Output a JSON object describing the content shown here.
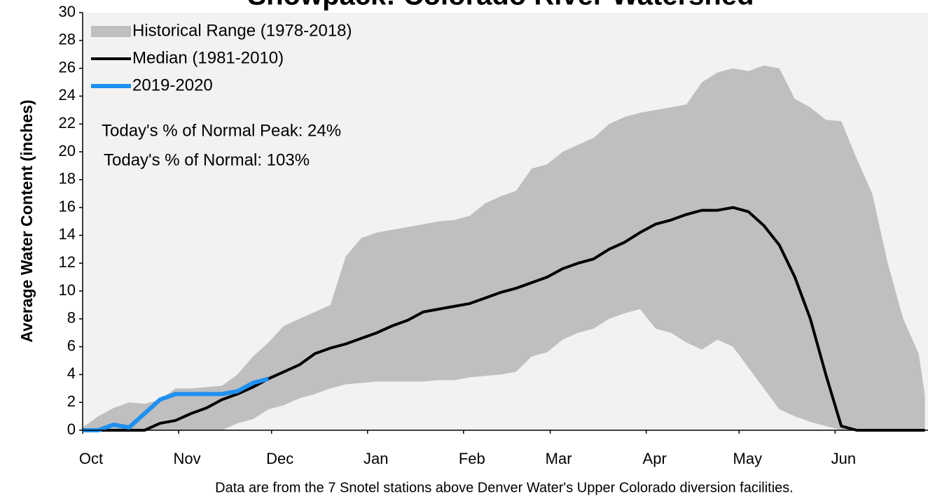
{
  "chart_data": {
    "type": "line",
    "title": "Snowpack: Colorado River Watershed",
    "y_label": "Average Water Content (inches)",
    "annotations": [
      "Today's % of Normal Peak: 24%",
      "Today's % of Normal: 103%"
    ],
    "footnote": "Data are from the 7 Snotel stations above Denver Water's Upper Colorado diversion facilities.",
    "xlim": [
      0,
      273
    ],
    "xticks": [
      {
        "value": 0,
        "label": "Oct"
      },
      {
        "value": 31,
        "label": "Nov"
      },
      {
        "value": 61,
        "label": "Dec"
      },
      {
        "value": 92,
        "label": "Jan"
      },
      {
        "value": 123,
        "label": "Feb"
      },
      {
        "value": 151,
        "label": "Mar"
      },
      {
        "value": 182,
        "label": "Apr"
      },
      {
        "value": 212,
        "label": "May"
      },
      {
        "value": 243,
        "label": "Jun"
      }
    ],
    "ylim": [
      0,
      30
    ],
    "yticks": [
      0,
      2,
      4,
      6,
      8,
      10,
      12,
      14,
      16,
      18,
      20,
      22,
      24,
      26,
      28,
      30
    ],
    "legend": "top-left",
    "x": [
      0,
      5,
      10,
      15,
      20,
      25,
      30,
      35,
      40,
      45,
      50,
      55,
      60,
      65,
      70,
      75,
      80,
      85,
      90,
      95,
      100,
      105,
      110,
      115,
      120,
      125,
      130,
      135,
      140,
      145,
      150,
      155,
      160,
      165,
      170,
      175,
      180,
      185,
      190,
      195,
      200,
      205,
      210,
      215,
      220,
      225,
      230,
      235,
      240,
      245,
      250,
      255,
      260,
      265,
      270,
      272
    ],
    "series": [
      {
        "name": "Historical Range (1978-2018)",
        "kind": "range",
        "color": "#bfbfbf",
        "high": [
          0.2,
          1.0,
          1.6,
          2.0,
          1.9,
          2.2,
          3.0,
          3.0,
          3.1,
          3.2,
          4.0,
          5.3,
          6.3,
          7.5,
          8.0,
          8.5,
          9.0,
          12.5,
          13.8,
          14.2,
          14.4,
          14.6,
          14.8,
          15.0,
          15.1,
          15.4,
          16.3,
          16.8,
          17.2,
          18.8,
          19.1,
          20.0,
          20.5,
          21.0,
          22.0,
          22.5,
          22.8,
          23.0,
          23.2,
          23.4,
          25.0,
          25.7,
          26.0,
          25.8,
          26.2,
          26.0,
          23.8,
          23.2,
          22.3,
          22.2,
          19.5,
          17.0,
          12.0,
          8.0,
          5.5,
          2.5
        ],
        "low": [
          0,
          0,
          0,
          0,
          0,
          0,
          0,
          0,
          0,
          0,
          0.5,
          0.8,
          1.5,
          1.8,
          2.3,
          2.6,
          3.0,
          3.3,
          3.4,
          3.5,
          3.5,
          3.5,
          3.5,
          3.6,
          3.6,
          3.8,
          3.9,
          4.0,
          4.2,
          5.3,
          5.6,
          6.5,
          7.0,
          7.3,
          8.0,
          8.4,
          8.7,
          7.3,
          7.0,
          6.3,
          5.8,
          6.5,
          6.0,
          4.5,
          3.0,
          1.5,
          1.0,
          0.6,
          0.3,
          0,
          0,
          0,
          0,
          0,
          0,
          0
        ]
      },
      {
        "name": "Median (1981-2010)",
        "color": "#000000",
        "width": 4,
        "values": [
          0,
          0,
          0,
          0,
          0,
          0.5,
          0.7,
          1.2,
          1.6,
          2.2,
          2.6,
          3.1,
          3.7,
          4.2,
          4.7,
          5.5,
          5.9,
          6.2,
          6.6,
          7.0,
          7.5,
          7.9,
          8.5,
          8.7,
          8.9,
          9.1,
          9.5,
          9.9,
          10.2,
          10.6,
          11.0,
          11.6,
          12.0,
          12.3,
          13.0,
          13.5,
          14.2,
          14.8,
          15.1,
          15.5,
          15.8,
          15.8,
          16.0,
          15.7,
          14.7,
          13.3,
          11.0,
          8.0,
          4.0,
          0.3,
          0,
          0,
          0,
          0,
          0,
          0
        ]
      },
      {
        "name": "2019-2020",
        "color": "#1e90f0",
        "width": 6,
        "values": [
          0,
          0,
          0.4,
          0.2,
          1.2,
          2.2,
          2.6,
          2.6,
          2.6,
          2.6,
          2.8,
          3.4,
          3.7,
          null,
          null,
          null,
          null,
          null,
          null,
          null,
          null,
          null,
          null,
          null,
          null,
          null,
          null,
          null,
          null,
          null,
          null,
          null,
          null,
          null,
          null,
          null,
          null,
          null,
          null,
          null,
          null,
          null,
          null,
          null,
          null,
          null,
          null,
          null,
          null,
          null,
          null,
          null,
          null,
          null,
          null,
          null
        ]
      }
    ]
  }
}
